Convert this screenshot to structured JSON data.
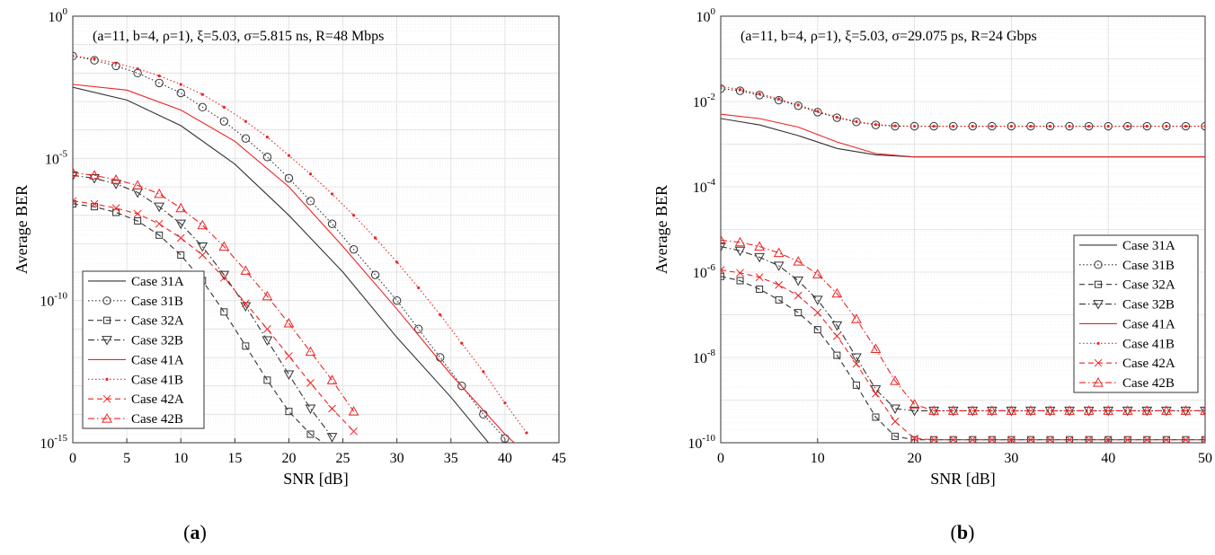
{
  "figure": {
    "captions": [
      {
        "open": "(",
        "letter": "a",
        "close": ")"
      },
      {
        "open": "(",
        "letter": "b",
        "close": ")"
      }
    ]
  },
  "colors": {
    "black": "#333333",
    "red": "#ee2222",
    "grid": "#dddddd"
  },
  "chart_data": [
    {
      "type": "line",
      "title": "(a=11, b=4, ρ=1), ξ=5.03, σ=5.815 ns, R=48 Mbps",
      "xlabel": "SNR [dB]",
      "ylabel": "Average BER",
      "xlim": [
        0,
        45
      ],
      "ylim_log10": [
        -15,
        0
      ],
      "xticks": [
        0,
        5,
        10,
        15,
        20,
        25,
        30,
        35,
        40,
        45
      ],
      "yticks": [
        {
          "exp": 0,
          "label": "0"
        },
        {
          "exp": -5,
          "label": "-5"
        },
        {
          "exp": -10,
          "label": "-10"
        },
        {
          "exp": -15,
          "label": "-15"
        }
      ],
      "legend_position": "bottom-left",
      "series": [
        {
          "name": "Case 31A",
          "color": "black",
          "dash": "solid",
          "marker": "none",
          "x": [
            0,
            5,
            10,
            15,
            20,
            25,
            30,
            35,
            40
          ],
          "log10_y": [
            -2.5,
            -2.95,
            -3.85,
            -5.2,
            -7.0,
            -9.0,
            -11.3,
            -13.4,
            -15.7
          ]
        },
        {
          "name": "Case 31B",
          "color": "black",
          "dash": "dotted",
          "marker": "circle",
          "x": [
            0,
            2,
            4,
            6,
            8,
            10,
            12,
            14,
            16,
            18,
            20,
            22,
            24,
            26,
            28,
            30,
            32,
            34,
            36,
            38,
            40
          ],
          "log10_y": [
            -1.4,
            -1.55,
            -1.75,
            -2.0,
            -2.35,
            -2.7,
            -3.2,
            -3.7,
            -4.3,
            -4.95,
            -5.7,
            -6.5,
            -7.3,
            -8.2,
            -9.1,
            -10.0,
            -11.0,
            -12.0,
            -13.0,
            -14.0,
            -14.85
          ]
        },
        {
          "name": "Case 32A",
          "color": "black",
          "dash": "dashed",
          "marker": "square",
          "x": [
            0,
            2,
            4,
            6,
            8,
            10,
            12,
            14,
            16,
            18,
            20,
            22,
            24
          ],
          "log10_y": [
            -6.6,
            -6.7,
            -6.9,
            -7.2,
            -7.7,
            -8.4,
            -9.3,
            -10.4,
            -11.6,
            -12.8,
            -13.9,
            -14.7,
            -15.2
          ]
        },
        {
          "name": "Case 32B",
          "color": "black",
          "dash": "dashdot",
          "marker": "triangle-down",
          "x": [
            0,
            2,
            4,
            6,
            8,
            10,
            12,
            14,
            16,
            18,
            20,
            22,
            24
          ],
          "log10_y": [
            -5.6,
            -5.7,
            -5.9,
            -6.2,
            -6.7,
            -7.3,
            -8.1,
            -9.1,
            -10.2,
            -11.4,
            -12.6,
            -13.8,
            -14.8
          ]
        },
        {
          "name": "Case 41A",
          "color": "red",
          "dash": "solid",
          "marker": "none",
          "x": [
            0,
            5,
            10,
            15,
            20,
            25,
            30,
            35,
            40,
            42
          ],
          "log10_y": [
            -2.4,
            -2.6,
            -3.3,
            -4.4,
            -6.0,
            -8.1,
            -10.3,
            -12.6,
            -14.7,
            -15.4
          ]
        },
        {
          "name": "Case 41B",
          "color": "red",
          "dash": "dotted",
          "marker": "dot",
          "x": [
            0,
            2,
            4,
            6,
            8,
            10,
            12,
            14,
            16,
            18,
            20,
            22,
            24,
            26,
            28,
            30,
            32,
            34,
            36,
            38,
            40,
            42
          ],
          "log10_y": [
            -1.4,
            -1.5,
            -1.65,
            -1.85,
            -2.1,
            -2.4,
            -2.75,
            -3.2,
            -3.7,
            -4.25,
            -4.9,
            -5.55,
            -6.25,
            -7.0,
            -7.8,
            -8.65,
            -9.55,
            -10.5,
            -11.5,
            -12.5,
            -13.6,
            -14.65
          ]
        },
        {
          "name": "Case 42A",
          "color": "red",
          "dash": "dashed",
          "marker": "x",
          "x": [
            0,
            2,
            4,
            6,
            8,
            10,
            12,
            14,
            16,
            18,
            20,
            22,
            24,
            26
          ],
          "log10_y": [
            -6.5,
            -6.6,
            -6.75,
            -6.95,
            -7.3,
            -7.8,
            -8.4,
            -9.2,
            -10.1,
            -11.0,
            -11.95,
            -12.9,
            -13.8,
            -14.6
          ]
        },
        {
          "name": "Case 42B",
          "color": "red",
          "dash": "dashdot",
          "marker": "triangle-up",
          "x": [
            0,
            2,
            4,
            6,
            8,
            10,
            12,
            14,
            16,
            18,
            20,
            22,
            24,
            26
          ],
          "log10_y": [
            -5.5,
            -5.6,
            -5.75,
            -5.95,
            -6.25,
            -6.75,
            -7.35,
            -8.1,
            -8.95,
            -9.85,
            -10.8,
            -11.8,
            -12.8,
            -13.9
          ]
        }
      ]
    },
    {
      "type": "line",
      "title": "(a=11, b=4, ρ=1), ξ=5.03, σ=29.075 ps, R=24 Gbps",
      "xlabel": "SNR [dB]",
      "ylabel": "Average BER",
      "xlim": [
        0,
        50
      ],
      "ylim_log10": [
        -10,
        0
      ],
      "xticks": [
        0,
        10,
        20,
        30,
        40,
        50
      ],
      "yticks": [
        {
          "exp": 0,
          "label": "0"
        },
        {
          "exp": -2,
          "label": "-2"
        },
        {
          "exp": -4,
          "label": "-4"
        },
        {
          "exp": -6,
          "label": "-6"
        },
        {
          "exp": -8,
          "label": "-8"
        },
        {
          "exp": -10,
          "label": "-10"
        }
      ],
      "legend_position": "bottom-right",
      "series": [
        {
          "name": "Case 31A",
          "color": "black",
          "dash": "solid",
          "marker": "none",
          "x": [
            0,
            4,
            8,
            12,
            16,
            20,
            50
          ],
          "log10_y": [
            -2.4,
            -2.55,
            -2.8,
            -3.1,
            -3.25,
            -3.3,
            -3.3
          ]
        },
        {
          "name": "Case 31B",
          "color": "black",
          "dash": "dotted",
          "marker": "circle",
          "x": [
            0,
            2,
            4,
            6,
            8,
            10,
            12,
            14,
            16,
            18,
            20,
            22,
            24,
            26,
            28,
            30,
            32,
            34,
            36,
            38,
            40,
            42,
            44,
            46,
            48,
            50
          ],
          "log10_y": [
            -1.7,
            -1.75,
            -1.85,
            -1.97,
            -2.1,
            -2.25,
            -2.38,
            -2.48,
            -2.55,
            -2.58,
            -2.58,
            -2.58,
            -2.58,
            -2.58,
            -2.58,
            -2.58,
            -2.58,
            -2.58,
            -2.58,
            -2.58,
            -2.58,
            -2.58,
            -2.58,
            -2.58,
            -2.58,
            -2.58
          ]
        },
        {
          "name": "Case 32A",
          "color": "black",
          "dash": "dashed",
          "marker": "square",
          "x": [
            0,
            2,
            4,
            6,
            8,
            10,
            12,
            14,
            16,
            18,
            20,
            22,
            24,
            26,
            28,
            30,
            32,
            34,
            36,
            38,
            40,
            42,
            44,
            46,
            48,
            50
          ],
          "log10_y": [
            -6.1,
            -6.2,
            -6.4,
            -6.65,
            -6.95,
            -7.35,
            -7.95,
            -8.65,
            -9.4,
            -9.85,
            -9.93,
            -9.93,
            -9.93,
            -9.93,
            -9.93,
            -9.93,
            -9.93,
            -9.93,
            -9.93,
            -9.93,
            -9.93,
            -9.93,
            -9.93,
            -9.93,
            -9.93,
            -9.93
          ]
        },
        {
          "name": "Case 32B",
          "color": "black",
          "dash": "dashdot",
          "marker": "triangle-down",
          "x": [
            0,
            2,
            4,
            6,
            8,
            10,
            12,
            14,
            16,
            18,
            20,
            22,
            24,
            26,
            28,
            30,
            32,
            34,
            36,
            38,
            40,
            42,
            44,
            46,
            48,
            50
          ],
          "log10_y": [
            -5.4,
            -5.5,
            -5.65,
            -5.85,
            -6.2,
            -6.65,
            -7.25,
            -8.0,
            -8.75,
            -9.2,
            -9.25,
            -9.25,
            -9.25,
            -9.25,
            -9.25,
            -9.25,
            -9.25,
            -9.25,
            -9.25,
            -9.25,
            -9.25,
            -9.25,
            -9.25,
            -9.25,
            -9.25,
            -9.25
          ]
        },
        {
          "name": "Case 41A",
          "color": "red",
          "dash": "solid",
          "marker": "none",
          "x": [
            0,
            4,
            8,
            12,
            16,
            20,
            50
          ],
          "log10_y": [
            -2.3,
            -2.4,
            -2.6,
            -2.95,
            -3.22,
            -3.3,
            -3.3
          ]
        },
        {
          "name": "Case 41B",
          "color": "red",
          "dash": "dotted",
          "marker": "dot",
          "x": [
            0,
            2,
            4,
            6,
            8,
            10,
            12,
            14,
            16,
            18,
            20,
            22,
            24,
            26,
            28,
            30,
            32,
            34,
            36,
            38,
            40,
            42,
            44,
            46,
            48,
            50
          ],
          "log10_y": [
            -1.65,
            -1.72,
            -1.82,
            -1.94,
            -2.08,
            -2.23,
            -2.37,
            -2.47,
            -2.54,
            -2.57,
            -2.58,
            -2.58,
            -2.58,
            -2.58,
            -2.58,
            -2.58,
            -2.58,
            -2.58,
            -2.58,
            -2.58,
            -2.58,
            -2.58,
            -2.58,
            -2.58,
            -2.58,
            -2.58
          ]
        },
        {
          "name": "Case 42A",
          "color": "red",
          "dash": "dashed",
          "marker": "x",
          "x": [
            0,
            2,
            4,
            6,
            8,
            10,
            12,
            14,
            16,
            18,
            20,
            22,
            24,
            26,
            28,
            30,
            32,
            34,
            36,
            38,
            40,
            42,
            44,
            46,
            48,
            50
          ],
          "log10_y": [
            -5.95,
            -6.02,
            -6.12,
            -6.3,
            -6.55,
            -6.95,
            -7.5,
            -8.15,
            -8.85,
            -9.5,
            -9.9,
            -9.93,
            -9.93,
            -9.93,
            -9.93,
            -9.93,
            -9.93,
            -9.93,
            -9.93,
            -9.93,
            -9.93,
            -9.93,
            -9.93,
            -9.93,
            -9.93,
            -9.93
          ]
        },
        {
          "name": "Case 42B",
          "color": "red",
          "dash": "dashdot",
          "marker": "triangle-up",
          "x": [
            0,
            2,
            4,
            6,
            8,
            10,
            12,
            14,
            16,
            18,
            20,
            22,
            24,
            26,
            28,
            30,
            32,
            34,
            36,
            38,
            40,
            42,
            44,
            46,
            48,
            50
          ],
          "log10_y": [
            -5.25,
            -5.3,
            -5.4,
            -5.55,
            -5.75,
            -6.05,
            -6.5,
            -7.1,
            -7.8,
            -8.55,
            -9.1,
            -9.25,
            -9.25,
            -9.25,
            -9.25,
            -9.25,
            -9.25,
            -9.25,
            -9.25,
            -9.25,
            -9.25,
            -9.25,
            -9.25,
            -9.25,
            -9.25,
            -9.25
          ]
        }
      ]
    }
  ]
}
